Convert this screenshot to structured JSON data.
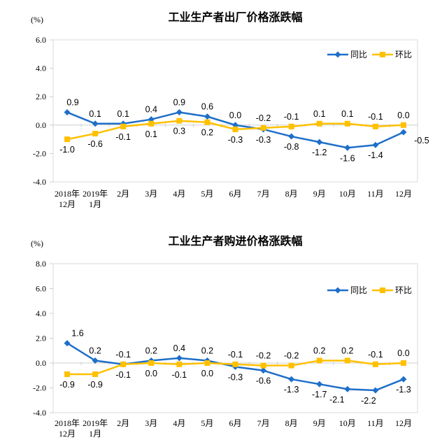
{
  "page": {
    "background": "#FFFFFF"
  },
  "colors": {
    "tongbi_blue": "#1E6FC8",
    "huanbi_gold": "#FFC000",
    "axis_line": "#CFCFCF",
    "plot_border": "#D9D9D9",
    "text": "#000000"
  },
  "chart_data": [
    {
      "type": "line",
      "title": "工业生产者出厂价格涨跌幅",
      "unit_label": "(%)",
      "categories": [
        "2018年12月",
        "2019年1月",
        "2月",
        "3月",
        "4月",
        "5月",
        "6月",
        "7月",
        "8月",
        "9月",
        "10月",
        "11月",
        "12月"
      ],
      "x_tick_lines": [
        [
          "2018年",
          "12月"
        ],
        [
          "2019年",
          "1月"
        ],
        [
          "2月"
        ],
        [
          "3月"
        ],
        [
          "4月"
        ],
        [
          "5月"
        ],
        [
          "6月"
        ],
        [
          "7月"
        ],
        [
          "8月"
        ],
        [
          "9月"
        ],
        [
          "10月"
        ],
        [
          "11月"
        ],
        [
          "12月"
        ]
      ],
      "series": [
        {
          "name": "同比",
          "color": "#1E6FC8",
          "marker": "diamond",
          "values": [
            0.9,
            0.1,
            0.1,
            0.4,
            0.9,
            0.6,
            0.0,
            -0.3,
            -0.8,
            -1.2,
            -1.6,
            -1.4,
            -0.5
          ]
        },
        {
          "name": "环比",
          "color": "#FFC000",
          "marker": "square",
          "values": [
            -1.0,
            -0.6,
            -0.1,
            0.1,
            0.3,
            0.2,
            -0.3,
            -0.2,
            -0.1,
            0.1,
            0.1,
            -0.1,
            0.0
          ]
        }
      ],
      "ylim": [
        -4.0,
        6.0
      ],
      "ytick_step": 2.0,
      "yticks": [
        "6.0",
        "4.0",
        "2.0",
        "0.0",
        "-2.0",
        "-4.0"
      ],
      "legend": [
        "同比",
        "环比"
      ],
      "legend_position": "inside-top-right",
      "grid": false
    },
    {
      "type": "line",
      "title": "工业生产者购进价格涨跌幅",
      "unit_label": "(%)",
      "categories": [
        "2018年12月",
        "2019年1月",
        "2月",
        "3月",
        "4月",
        "5月",
        "6月",
        "7月",
        "8月",
        "9月",
        "10月",
        "11月",
        "12月"
      ],
      "x_tick_lines": [
        [
          "2018年",
          "12月"
        ],
        [
          "2019年",
          "1月"
        ],
        [
          "2月"
        ],
        [
          "3月"
        ],
        [
          "4月"
        ],
        [
          "5月"
        ],
        [
          "6月"
        ],
        [
          "7月"
        ],
        [
          "8月"
        ],
        [
          "9月"
        ],
        [
          "10月"
        ],
        [
          "11月"
        ],
        [
          "12月"
        ]
      ],
      "series": [
        {
          "name": "同比",
          "color": "#1E6FC8",
          "marker": "diamond",
          "values": [
            1.6,
            0.2,
            -0.1,
            0.2,
            0.4,
            0.2,
            -0.3,
            -0.6,
            -1.3,
            -1.7,
            -2.1,
            -2.2,
            -1.3
          ]
        },
        {
          "name": "环比",
          "color": "#FFC000",
          "marker": "square",
          "values": [
            -0.9,
            -0.9,
            -0.1,
            0.0,
            -0.1,
            0.0,
            -0.1,
            -0.2,
            -0.2,
            0.2,
            0.2,
            -0.1,
            0.0
          ]
        }
      ],
      "ylim": [
        -4.0,
        8.0
      ],
      "ytick_step": 2.0,
      "yticks": [
        "8.0",
        "6.0",
        "4.0",
        "2.0",
        "0.0",
        "-2.0",
        "-4.0"
      ],
      "legend": [
        "同比",
        "环比"
      ],
      "legend_position": "inside-top-right",
      "grid": false
    }
  ]
}
